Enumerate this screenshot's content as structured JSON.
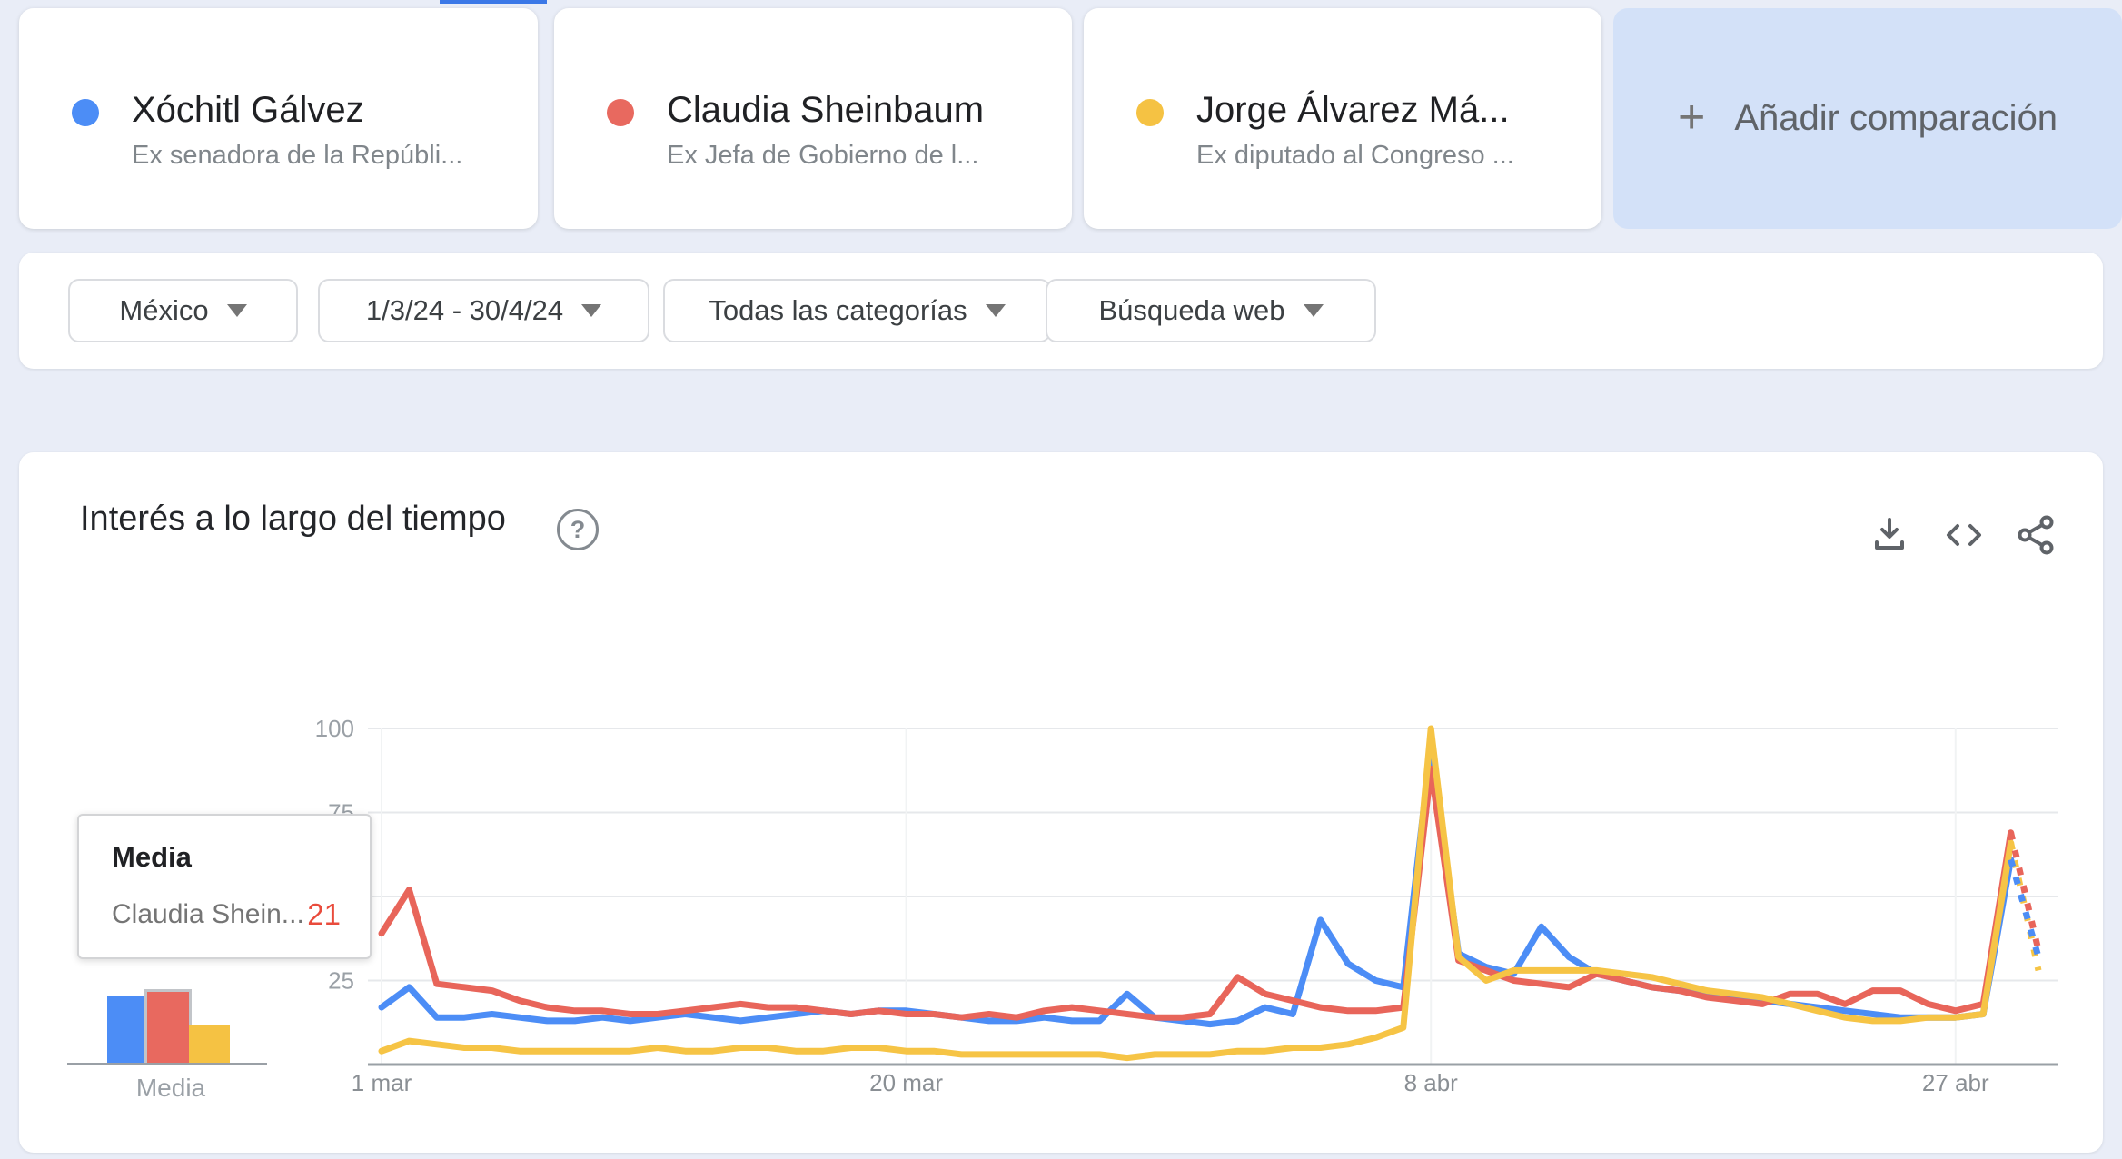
{
  "page": {
    "background": "#e9edf7",
    "accent_strip_color": "#3b78e7"
  },
  "terms": [
    {
      "title": "Xóchitl Gálvez",
      "subtitle": "Ex senadora de la Repúbli...",
      "color": "#4c8df6"
    },
    {
      "title": "Claudia Sheinbaum",
      "subtitle": "Ex Jefa de Gobierno de l...",
      "color": "#e8695f"
    },
    {
      "title": "Jorge Álvarez Má...",
      "subtitle": "Ex diputado al Congreso ...",
      "color": "#f5c243"
    }
  ],
  "add_comparison": {
    "plus": "+",
    "label": "Añadir comparación"
  },
  "filters": [
    {
      "label": "México"
    },
    {
      "label": "1/3/24 - 30/4/24"
    },
    {
      "label": "Todas las categorías"
    },
    {
      "label": "Búsqueda web"
    }
  ],
  "chart_header": {
    "title": "Interés a lo largo del tiempo",
    "help_icon": "?",
    "icons": [
      "download-icon",
      "embed-code-icon",
      "share-icon"
    ],
    "icon_color": "#5f6368"
  },
  "tooltip": {
    "title": "Media",
    "row_label": "Claudia Shein...",
    "row_value": "21",
    "value_color": "#e94b3c"
  },
  "media_chart": {
    "label": "Media",
    "bars": [
      {
        "name": "Xóchitl Gálvez",
        "value": 20,
        "color": "#4c8df6",
        "highlighted": false
      },
      {
        "name": "Claudia Sheinbaum",
        "value": 21,
        "color": "#e8695f",
        "highlighted": true
      },
      {
        "name": "Jorge Álvarez Máynez",
        "value": 11,
        "color": "#f5c243",
        "highlighted": false
      }
    ]
  },
  "chart_data": {
    "type": "line",
    "title": "Interés a lo largo del tiempo",
    "date_range": "1/3/24 - 30/4/24",
    "region": "México",
    "ylim": [
      0,
      100
    ],
    "y_ticks": [
      25,
      50,
      75,
      100
    ],
    "x_tick_labels": [
      "1 mar",
      "20 mar",
      "8 abr",
      "27 abr"
    ],
    "x_tick_days": [
      0,
      19,
      38,
      57
    ],
    "days_total": 61,
    "dotted_tail_from_index": 59,
    "grid": true,
    "baseline_color": "#9aa0a6",
    "gridline_color": "#e6e8eb",
    "vgridline_color": "#f1f3f4",
    "axis_label_color": "#9aa0a6",
    "series": [
      {
        "name": "Xóchitl Gálvez",
        "color": "#4c8df6",
        "values": [
          17,
          23,
          14,
          14,
          15,
          14,
          13,
          13,
          14,
          13,
          14,
          15,
          14,
          13,
          14,
          15,
          16,
          15,
          16,
          16,
          15,
          14,
          13,
          13,
          14,
          13,
          13,
          21,
          14,
          13,
          12,
          13,
          17,
          15,
          43,
          30,
          25,
          23,
          95,
          33,
          29,
          27,
          41,
          32,
          27,
          25,
          23,
          22,
          21,
          20,
          19,
          18,
          17,
          16,
          15,
          14,
          14,
          14,
          15,
          61,
          32
        ]
      },
      {
        "name": "Claudia Sheinbaum",
        "color": "#e8655a",
        "values": [
          39,
          52,
          24,
          23,
          22,
          19,
          17,
          16,
          16,
          15,
          15,
          16,
          17,
          18,
          17,
          17,
          16,
          15,
          16,
          15,
          15,
          14,
          15,
          14,
          16,
          17,
          16,
          15,
          14,
          14,
          15,
          26,
          21,
          19,
          17,
          16,
          16,
          17,
          88,
          31,
          28,
          25,
          24,
          23,
          27,
          25,
          23,
          22,
          20,
          19,
          18,
          21,
          21,
          18,
          22,
          22,
          18,
          16,
          18,
          69,
          34
        ]
      },
      {
        "name": "Jorge Álvarez Máynez",
        "color": "#f6c445",
        "values": [
          4,
          7,
          6,
          5,
          5,
          4,
          4,
          4,
          4,
          4,
          5,
          4,
          4,
          5,
          5,
          4,
          4,
          5,
          5,
          4,
          4,
          3,
          3,
          3,
          3,
          3,
          3,
          2,
          3,
          3,
          3,
          4,
          4,
          5,
          5,
          6,
          8,
          11,
          100,
          32,
          25,
          28,
          28,
          28,
          28,
          27,
          26,
          24,
          22,
          21,
          20,
          18,
          16,
          14,
          13,
          13,
          14,
          14,
          15,
          66,
          28
        ]
      }
    ]
  }
}
